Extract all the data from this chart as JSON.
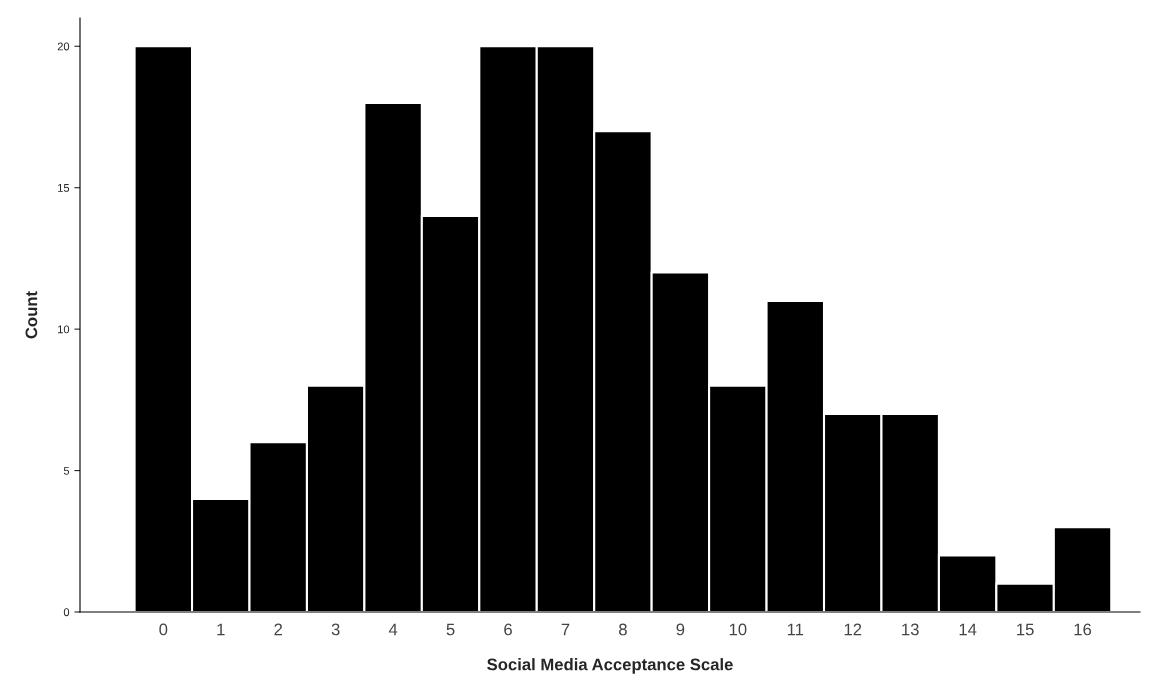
{
  "chart_data": {
    "type": "bar",
    "xlabel": "Social Media Acceptance Scale",
    "ylabel": "Count",
    "categories": [
      "0",
      "1",
      "2",
      "3",
      "4",
      "5",
      "6",
      "7",
      "8",
      "9",
      "10",
      "11",
      "12",
      "13",
      "14",
      "15",
      "16"
    ],
    "values": [
      20,
      4,
      6,
      8,
      18,
      14,
      20,
      20,
      17,
      12,
      8,
      11,
      7,
      7,
      2,
      1,
      3
    ],
    "color": "#000000",
    "ylim": [
      0,
      21
    ],
    "yticks": [
      0,
      5,
      10,
      15,
      20
    ],
    "grid": false
  }
}
